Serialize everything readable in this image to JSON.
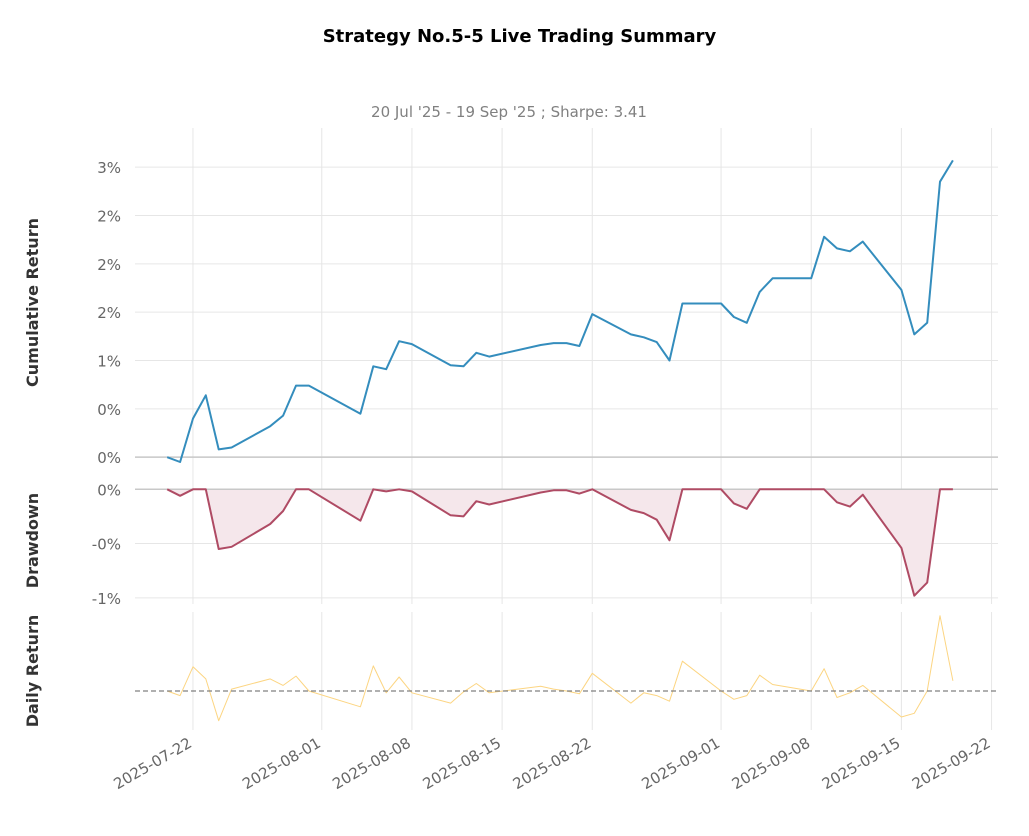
{
  "title": "Strategy No.5-5 Live Trading Summary",
  "subtitle": "20 Jul '25 - 19 Sep '25 ;  Sharpe: 3.41",
  "colors": {
    "cumulative": "#348dbd",
    "drawdown": "#af4b64",
    "drawdown_fill": "#f5e7eb",
    "daily": "#fcd582",
    "grid": "#e6e6e6",
    "baseline": "#c8c8c8",
    "zero_line": "#808080",
    "tick_text": "#666666",
    "axis_label": "#333333"
  },
  "chart_data": [
    {
      "type": "line",
      "panel": "cumulative",
      "ylabel": "Cumulative Return",
      "ylim": [
        -0.05,
        3.25
      ],
      "ytick_values": [
        0,
        0.5,
        1.0,
        1.5,
        2.0,
        2.5,
        3.0
      ],
      "ytick_labels": [
        "0%",
        "0%",
        "1%",
        "2%",
        "2%",
        "2%",
        "3%"
      ],
      "x": [
        "2025-07-20",
        "2025-07-21",
        "2025-07-22",
        "2025-07-23",
        "2025-07-24",
        "2025-07-25",
        "2025-07-28",
        "2025-07-29",
        "2025-07-30",
        "2025-07-31",
        "2025-08-04",
        "2025-08-05",
        "2025-08-06",
        "2025-08-07",
        "2025-08-08",
        "2025-08-11",
        "2025-08-12",
        "2025-08-13",
        "2025-08-14",
        "2025-08-18",
        "2025-08-19",
        "2025-08-20",
        "2025-08-21",
        "2025-08-22",
        "2025-08-25",
        "2025-08-26",
        "2025-08-27",
        "2025-08-28",
        "2025-08-29",
        "2025-09-01",
        "2025-09-02",
        "2025-09-03",
        "2025-09-04",
        "2025-09-05",
        "2025-09-08",
        "2025-09-09",
        "2025-09-10",
        "2025-09-11",
        "2025-09-12",
        "2025-09-15",
        "2025-09-16",
        "2025-09-17",
        "2025-09-18",
        "2025-09-19"
      ],
      "values": [
        0.0,
        -0.05,
        0.4,
        0.64,
        0.08,
        0.1,
        0.32,
        0.43,
        0.74,
        0.74,
        0.45,
        0.94,
        0.91,
        1.2,
        1.17,
        0.95,
        0.94,
        1.08,
        1.04,
        1.16,
        1.18,
        1.18,
        1.15,
        1.48,
        1.27,
        1.24,
        1.19,
        1.0,
        1.59,
        1.59,
        1.45,
        1.39,
        1.71,
        1.85,
        1.85,
        2.28,
        2.16,
        2.13,
        2.23,
        1.73,
        1.27,
        1.39,
        2.85,
        3.07
      ]
    },
    {
      "type": "area",
      "panel": "drawdown",
      "ylabel": "Drawdown",
      "ylim": [
        -1.02,
        0.03
      ],
      "ytick_values": [
        0,
        -0.5,
        -1.0
      ],
      "ytick_labels": [
        "0%",
        "-0%",
        "-1%"
      ],
      "x": [
        "2025-07-20",
        "2025-07-21",
        "2025-07-22",
        "2025-07-23",
        "2025-07-24",
        "2025-07-25",
        "2025-07-28",
        "2025-07-29",
        "2025-07-30",
        "2025-07-31",
        "2025-08-04",
        "2025-08-05",
        "2025-08-06",
        "2025-08-07",
        "2025-08-08",
        "2025-08-11",
        "2025-08-12",
        "2025-08-13",
        "2025-08-14",
        "2025-08-18",
        "2025-08-19",
        "2025-08-20",
        "2025-08-21",
        "2025-08-22",
        "2025-08-25",
        "2025-08-26",
        "2025-08-27",
        "2025-08-28",
        "2025-08-29",
        "2025-09-01",
        "2025-09-02",
        "2025-09-03",
        "2025-09-04",
        "2025-09-05",
        "2025-09-08",
        "2025-09-09",
        "2025-09-10",
        "2025-09-11",
        "2025-09-12",
        "2025-09-15",
        "2025-09-16",
        "2025-09-17",
        "2025-09-18",
        "2025-09-19"
      ],
      "values": [
        0.0,
        -0.06,
        0.0,
        0.0,
        -0.55,
        -0.53,
        -0.32,
        -0.2,
        0.0,
        0.0,
        -0.29,
        0.0,
        -0.02,
        0.0,
        -0.02,
        -0.24,
        -0.25,
        -0.11,
        -0.14,
        -0.03,
        -0.01,
        -0.01,
        -0.04,
        0.0,
        -0.19,
        -0.22,
        -0.28,
        -0.47,
        0.0,
        0.0,
        -0.13,
        -0.18,
        0.0,
        0.0,
        0.0,
        0.0,
        -0.12,
        -0.16,
        -0.05,
        -0.54,
        -0.98,
        -0.86,
        0.0,
        0.0
      ]
    },
    {
      "type": "line",
      "panel": "daily",
      "ylabel": "Daily Return",
      "ylim": [
        -0.42,
        0.85
      ],
      "x": [
        "2025-07-20",
        "2025-07-21",
        "2025-07-22",
        "2025-07-23",
        "2025-07-24",
        "2025-07-25",
        "2025-07-28",
        "2025-07-29",
        "2025-07-30",
        "2025-07-31",
        "2025-08-04",
        "2025-08-05",
        "2025-08-06",
        "2025-08-07",
        "2025-08-08",
        "2025-08-11",
        "2025-08-12",
        "2025-08-13",
        "2025-08-14",
        "2025-08-18",
        "2025-08-19",
        "2025-08-20",
        "2025-08-21",
        "2025-08-22",
        "2025-08-25",
        "2025-08-26",
        "2025-08-27",
        "2025-08-28",
        "2025-08-29",
        "2025-09-01",
        "2025-09-02",
        "2025-09-03",
        "2025-09-04",
        "2025-09-05",
        "2025-09-08",
        "2025-09-09",
        "2025-09-10",
        "2025-09-11",
        "2025-09-12",
        "2025-09-15",
        "2025-09-16",
        "2025-09-17",
        "2025-09-18",
        "2025-09-19"
      ],
      "values": [
        0.0,
        -0.05,
        0.26,
        0.13,
        -0.32,
        0.02,
        0.13,
        0.06,
        0.16,
        0.0,
        -0.17,
        0.27,
        -0.02,
        0.15,
        -0.02,
        -0.13,
        -0.01,
        0.08,
        -0.02,
        0.05,
        0.02,
        0.0,
        -0.03,
        0.19,
        -0.13,
        -0.02,
        -0.05,
        -0.11,
        0.32,
        0.0,
        -0.09,
        -0.05,
        0.17,
        0.07,
        0.0,
        0.24,
        -0.07,
        -0.02,
        0.06,
        -0.28,
        -0.24,
        0.0,
        0.81,
        0.11
      ],
      "zero_line": "dashed"
    }
  ],
  "x_axis": {
    "tick_dates": [
      "2025-07-22",
      "2025-08-01",
      "2025-08-08",
      "2025-08-15",
      "2025-08-22",
      "2025-09-01",
      "2025-09-08",
      "2025-09-15",
      "2025-09-22"
    ],
    "tick_labels": [
      "2025-07-22",
      "2025-08-01",
      "2025-08-08",
      "2025-08-15",
      "2025-08-22",
      "2025-09-01",
      "2025-09-08",
      "2025-09-15",
      "2025-09-22"
    ]
  }
}
